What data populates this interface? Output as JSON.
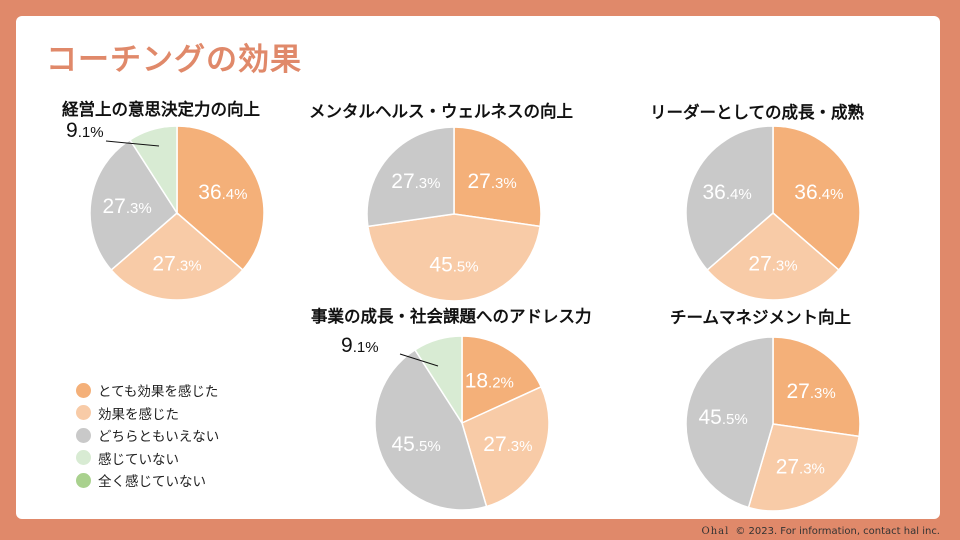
{
  "page": {
    "title": "コーチングの効果"
  },
  "colors": {
    "very_effective": "#f4b079",
    "effective": "#f8cba7",
    "neutral": "#c9c9c9",
    "not_effective": "#d8ebd3",
    "not_at_all": "#a9d18e",
    "background": "#e0896a"
  },
  "legend": [
    {
      "label": "とても効果を感じた",
      "color": "#f4b079"
    },
    {
      "label": "効果を感じた",
      "color": "#f8cba7"
    },
    {
      "label": "どちらともいえない",
      "color": "#c9c9c9"
    },
    {
      "label": "感じていない",
      "color": "#d8ebd3"
    },
    {
      "label": "全く感じていない",
      "color": "#a9d18e"
    }
  ],
  "chart_data": [
    {
      "type": "pie",
      "title": "経営上の意思決定力の向上",
      "slices": [
        {
          "name": "とても効果を感じた",
          "value": 36.4,
          "int": "36",
          "dec": ".4%"
        },
        {
          "name": "効果を感じた",
          "value": 27.3,
          "int": "27",
          "dec": ".3%"
        },
        {
          "name": "どちらともいえない",
          "value": 27.3,
          "int": "27",
          "dec": ".3%"
        },
        {
          "name": "感じていない",
          "value": 9.1,
          "int": "9",
          "dec": ".1%"
        }
      ]
    },
    {
      "type": "pie",
      "title": "メンタルヘルス・ウェルネスの向上",
      "slices": [
        {
          "name": "とても効果を感じた",
          "value": 27.3,
          "int": "27",
          "dec": ".3%"
        },
        {
          "name": "効果を感じた",
          "value": 45.5,
          "int": "45",
          "dec": ".5%"
        },
        {
          "name": "どちらともいえない",
          "value": 27.3,
          "int": "27",
          "dec": ".3%"
        }
      ]
    },
    {
      "type": "pie",
      "title": "リーダーとしての成長・成熟",
      "slices": [
        {
          "name": "とても効果を感じた",
          "value": 36.4,
          "int": "36",
          "dec": ".4%"
        },
        {
          "name": "効果を感じた",
          "value": 27.3,
          "int": "27",
          "dec": ".3%"
        },
        {
          "name": "どちらともいえない",
          "value": 36.4,
          "int": "36",
          "dec": ".4%"
        }
      ]
    },
    {
      "type": "pie",
      "title": "事業の成長・社会課題へのアドレス力",
      "slices": [
        {
          "name": "とても効果を感じた",
          "value": 18.2,
          "int": "18",
          "dec": ".2%"
        },
        {
          "name": "効果を感じた",
          "value": 27.3,
          "int": "27",
          "dec": ".3%"
        },
        {
          "name": "どちらともいえない",
          "value": 45.5,
          "int": "45",
          "dec": ".5%"
        },
        {
          "name": "感じていない",
          "value": 9.1,
          "int": "9",
          "dec": ".1%"
        }
      ]
    },
    {
      "type": "pie",
      "title": "チームマネジメント向上",
      "slices": [
        {
          "name": "とても効果を感じた",
          "value": 27.3,
          "int": "27",
          "dec": ".3%"
        },
        {
          "name": "効果を感じた",
          "value": 27.3,
          "int": "27",
          "dec": ".3%"
        },
        {
          "name": "どちらともいえない",
          "value": 45.5,
          "int": "45",
          "dec": ".5%"
        }
      ]
    }
  ],
  "footer": {
    "logo": "Ohal",
    "copyright": "© 2023. For information, contact hal inc."
  }
}
